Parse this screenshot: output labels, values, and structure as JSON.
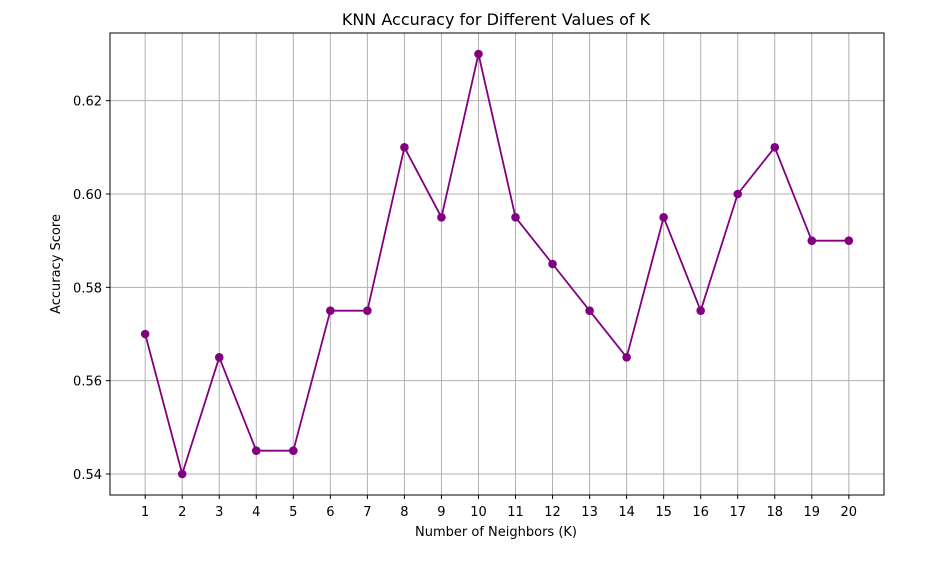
{
  "chart_data": {
    "type": "line",
    "title": "KNN Accuracy for Different Values of K",
    "xlabel": "Number of Neighbors (K)",
    "ylabel": "Accuracy Score",
    "x": [
      1,
      2,
      3,
      4,
      5,
      6,
      7,
      8,
      9,
      10,
      11,
      12,
      13,
      14,
      15,
      16,
      17,
      18,
      19,
      20
    ],
    "x_tick_labels": [
      "1",
      "2",
      "3",
      "4",
      "5",
      "6",
      "7",
      "8",
      "9",
      "10",
      "11",
      "12",
      "13",
      "14",
      "15",
      "16",
      "17",
      "18",
      "19",
      "20"
    ],
    "y_tick_values": [
      0.54,
      0.56,
      0.58,
      0.6,
      0.62
    ],
    "y_tick_labels": [
      "0.54",
      "0.56",
      "0.58",
      "0.60",
      "0.62"
    ],
    "series": [
      {
        "values": [
          0.57,
          0.54,
          0.565,
          0.545,
          0.545,
          0.575,
          0.575,
          0.61,
          0.595,
          0.63,
          0.595,
          0.585,
          0.575,
          0.565,
          0.595,
          0.575,
          0.6,
          0.61,
          0.59,
          0.59
        ],
        "color": "#800080",
        "marker": "circle"
      }
    ],
    "xlim": [
      0.05,
      20.95
    ],
    "ylim": [
      0.5355,
      0.6345
    ],
    "grid": true,
    "grid_color": "#b0b0b0"
  }
}
